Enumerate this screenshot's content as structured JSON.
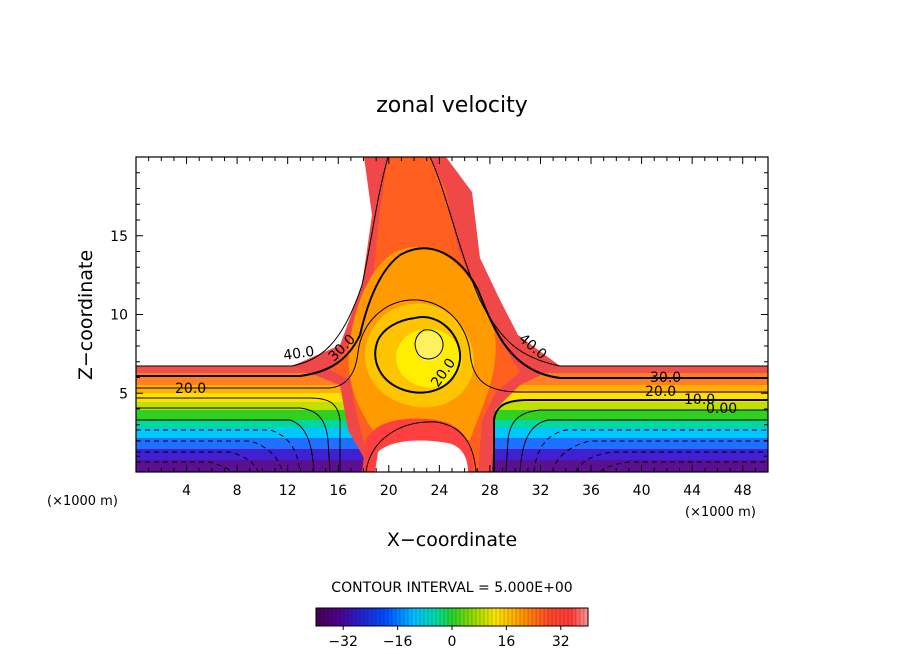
{
  "chart_data": {
    "type": "heatmap",
    "title": "zonal velocity",
    "xlabel": "X−coordinate",
    "ylabel": "Z−coordinate",
    "x_unit": "(×1000 m)",
    "z_unit": "(×1000 m)",
    "xlim": [
      0,
      50
    ],
    "ylim": [
      0,
      20
    ],
    "x_ticks": [
      4,
      8,
      12,
      16,
      20,
      24,
      28,
      32,
      36,
      40,
      44,
      48
    ],
    "y_ticks": [
      5,
      10,
      15
    ],
    "contour_interval_text": "CONTOUR INTERVAL = 5.000E+00",
    "contour_interval": 5,
    "contour_labels": [
      "40.0",
      "30.0",
      "20.0",
      "20.0",
      "40.0",
      "30.0",
      "20.0",
      "10.0",
      "0.00"
    ],
    "colorbar": {
      "range": [
        -40,
        40
      ],
      "ticks": [
        -32,
        -16,
        0,
        16,
        32
      ],
      "tick_labels": [
        "−32",
        "−16",
        "0",
        "16",
        "32"
      ]
    }
  }
}
